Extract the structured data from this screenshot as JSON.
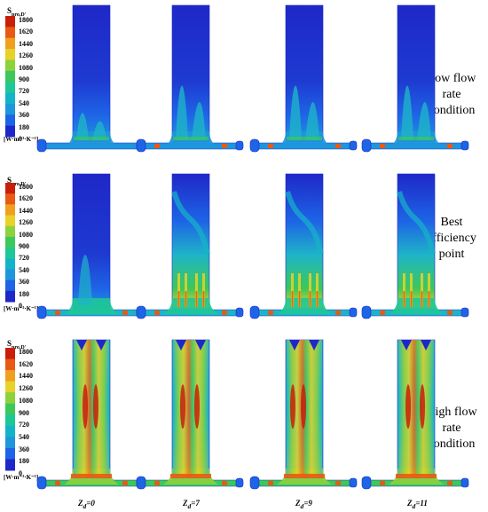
{
  "colorbar": {
    "title_main": "S",
    "title_sub": "pro,D'",
    "unit": "[W·m⁻³·K⁻¹]",
    "ticks": [
      "1800",
      "1620",
      "1440",
      "1260",
      "1080",
      "900",
      "720",
      "540",
      "360",
      "180",
      "0"
    ],
    "colors": [
      "#c81e0a",
      "#e85a14",
      "#f0a01e",
      "#e8d22a",
      "#8cd23c",
      "#3cc85a",
      "#1ec896",
      "#14b4c8",
      "#1e96dc",
      "#1e64e6",
      "#1e28c8"
    ]
  },
  "rows": [
    {
      "label": "Low flow rate condition",
      "lines": [
        "Low flow",
        "rate",
        "condition"
      ]
    },
    {
      "label": "Best efficiency point",
      "lines": [
        "Best",
        "efficiency",
        "point"
      ]
    },
    {
      "label": "High flow rate condition",
      "lines": [
        "High flow",
        "rate",
        "condition"
      ]
    }
  ],
  "columns": [
    {
      "z_sym": "Z",
      "z_sub": "d",
      "z_val": "=0"
    },
    {
      "z_sym": "Z",
      "z_sub": "d",
      "z_val": "=7"
    },
    {
      "z_sym": "Z",
      "z_sub": "d",
      "z_val": "=9"
    },
    {
      "z_sym": "Z",
      "z_sub": "d",
      "z_val": "=11"
    }
  ]
}
